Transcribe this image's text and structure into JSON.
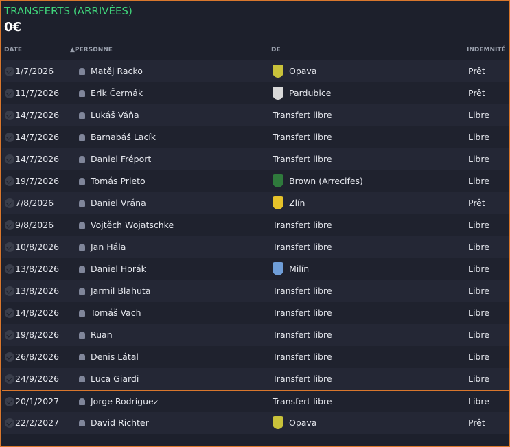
{
  "title": "TRANSFERTS (ARRIVÉES)",
  "total": "0€",
  "columns": {
    "date": "DATE",
    "person": "▲PERSONNE",
    "from": "DE",
    "fee": "INDEMNITÉ"
  },
  "rows": [
    {
      "date": "1/7/2026",
      "name": "Matěj Racko",
      "club": "Opava",
      "crest": "#c9c23a",
      "fee": "Prêt"
    },
    {
      "date": "11/7/2026",
      "name": "Erik Čermák",
      "club": "Pardubice",
      "crest": "#d9d9d9",
      "fee": "Prêt"
    },
    {
      "date": "14/7/2026",
      "name": "Lukáš Váňa",
      "club": "Transfert libre",
      "fee": "Libre"
    },
    {
      "date": "14/7/2026",
      "name": "Barnabáš Lacík",
      "club": "Transfert libre",
      "fee": "Libre"
    },
    {
      "date": "14/7/2026",
      "name": "Daniel Fréport",
      "club": "Transfert libre",
      "fee": "Libre"
    },
    {
      "date": "19/7/2026",
      "name": "Tomás Prieto",
      "club": "Brown (Arrecifes)",
      "crest": "#2f7a3c",
      "fee": "Libre"
    },
    {
      "date": "7/8/2026",
      "name": "Daniel Vrána",
      "club": "Zlín",
      "crest": "#e6c22a",
      "fee": "Prêt"
    },
    {
      "date": "9/8/2026",
      "name": "Vojtěch Wojatschke",
      "club": "Transfert libre",
      "fee": "Libre"
    },
    {
      "date": "10/8/2026",
      "name": "Jan Hála",
      "club": "Transfert libre",
      "fee": "Libre"
    },
    {
      "date": "13/8/2026",
      "name": "Daniel Horák",
      "club": "Milín",
      "crest": "#6f9ed8",
      "fee": "Libre"
    },
    {
      "date": "13/8/2026",
      "name": "Jarmil Blahuta",
      "club": "Transfert libre",
      "fee": "Libre"
    },
    {
      "date": "14/8/2026",
      "name": "Tomáš Vach",
      "club": "Transfert libre",
      "fee": "Libre"
    },
    {
      "date": "19/8/2026",
      "name": "Ruan",
      "club": "Transfert libre",
      "fee": "Libre"
    },
    {
      "date": "26/8/2026",
      "name": "Denis Látal",
      "club": "Transfert libre",
      "fee": "Libre"
    },
    {
      "date": "24/9/2026",
      "name": "Luca Giardi",
      "club": "Transfert libre",
      "fee": "Libre"
    },
    {
      "date": "20/1/2027",
      "name": "Jorge Rodríguez",
      "club": "Transfert libre",
      "fee": "Libre"
    },
    {
      "date": "22/2/2027",
      "name": "David Richter",
      "club": "Opava",
      "crest": "#c9c23a",
      "fee": "Prêt"
    }
  ]
}
